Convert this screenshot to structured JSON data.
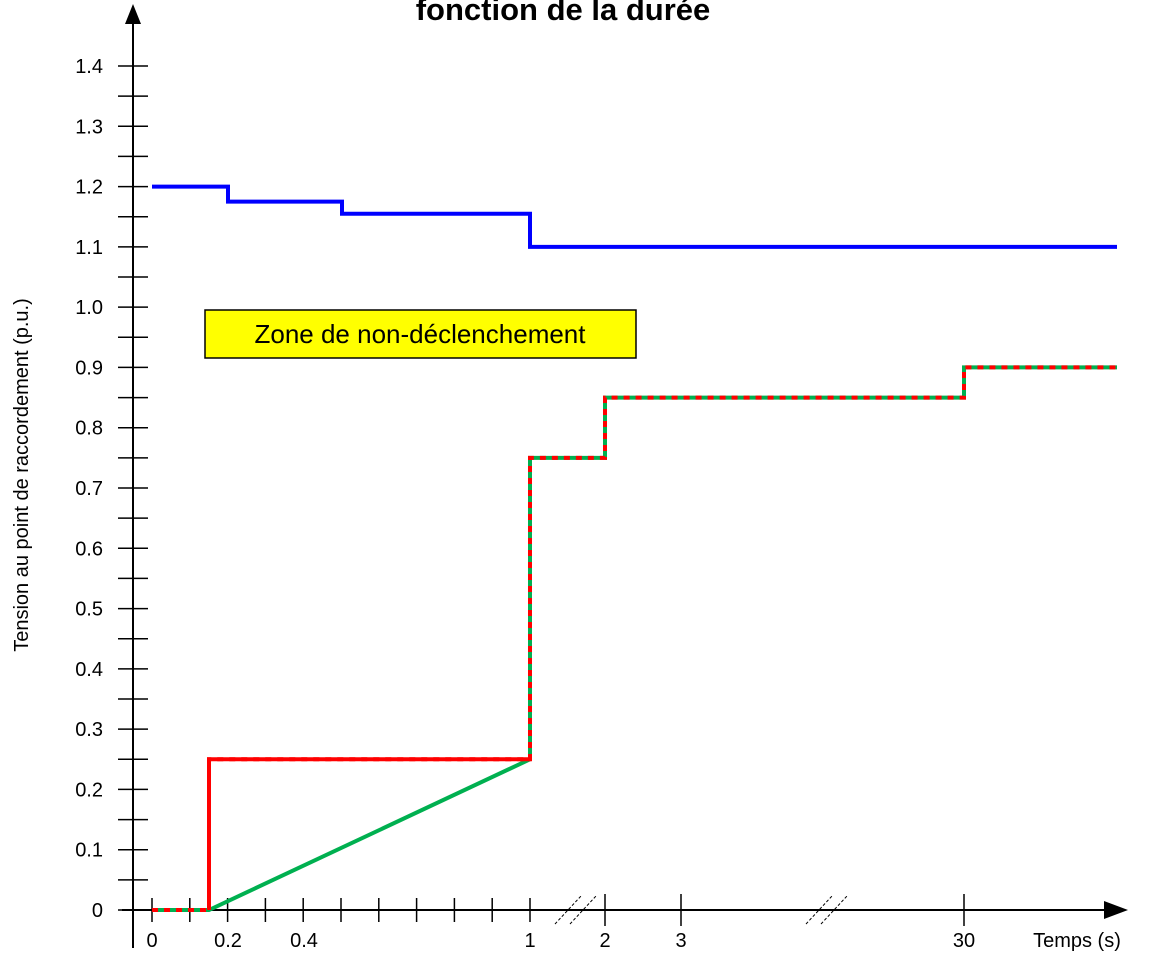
{
  "chart_data": {
    "type": "line",
    "title": "fonction de la durée",
    "ylabel": "Tension au point de raccordement  (p.u.)",
    "xlabel": "Temps (s)",
    "ylim": [
      0,
      1.4
    ],
    "y_ticks": [
      "0",
      "0.1",
      "0.2",
      "0.3",
      "0.4",
      "0.5",
      "0.6",
      "0.7",
      "0.8",
      "0.9",
      "1.0",
      "1.1",
      "1.2",
      "1.3",
      "1.4"
    ],
    "x_ticks": [
      "0",
      "0.2",
      "0.4",
      "1",
      "2",
      "3",
      "30"
    ],
    "annotation": "Zone de non-déclenchement",
    "colors": {
      "upper": "#0000ff",
      "red": "#ff0000",
      "green": "#00b050",
      "annotation_bg": "#ffff00"
    },
    "series": [
      {
        "key": "upper",
        "x": [
          0,
          0.2,
          0.2,
          0.5,
          0.5,
          1,
          1,
          "end"
        ],
        "y": [
          1.2,
          1.2,
          1.175,
          1.175,
          1.155,
          1.155,
          1.1,
          1.1
        ]
      },
      {
        "key": "red",
        "x": [
          0,
          0.15,
          0.15,
          1,
          1,
          2,
          2,
          30,
          30,
          "end"
        ],
        "y": [
          0,
          0,
          0.25,
          0.25,
          0.75,
          0.75,
          0.85,
          0.85,
          0.9,
          0.9
        ]
      },
      {
        "key": "green",
        "x": [
          0,
          0.15,
          1,
          1,
          2,
          2,
          30,
          30,
          "end"
        ],
        "y": [
          0,
          0,
          0.25,
          0.75,
          0.75,
          0.85,
          0.85,
          0.9,
          0.9
        ]
      }
    ]
  }
}
